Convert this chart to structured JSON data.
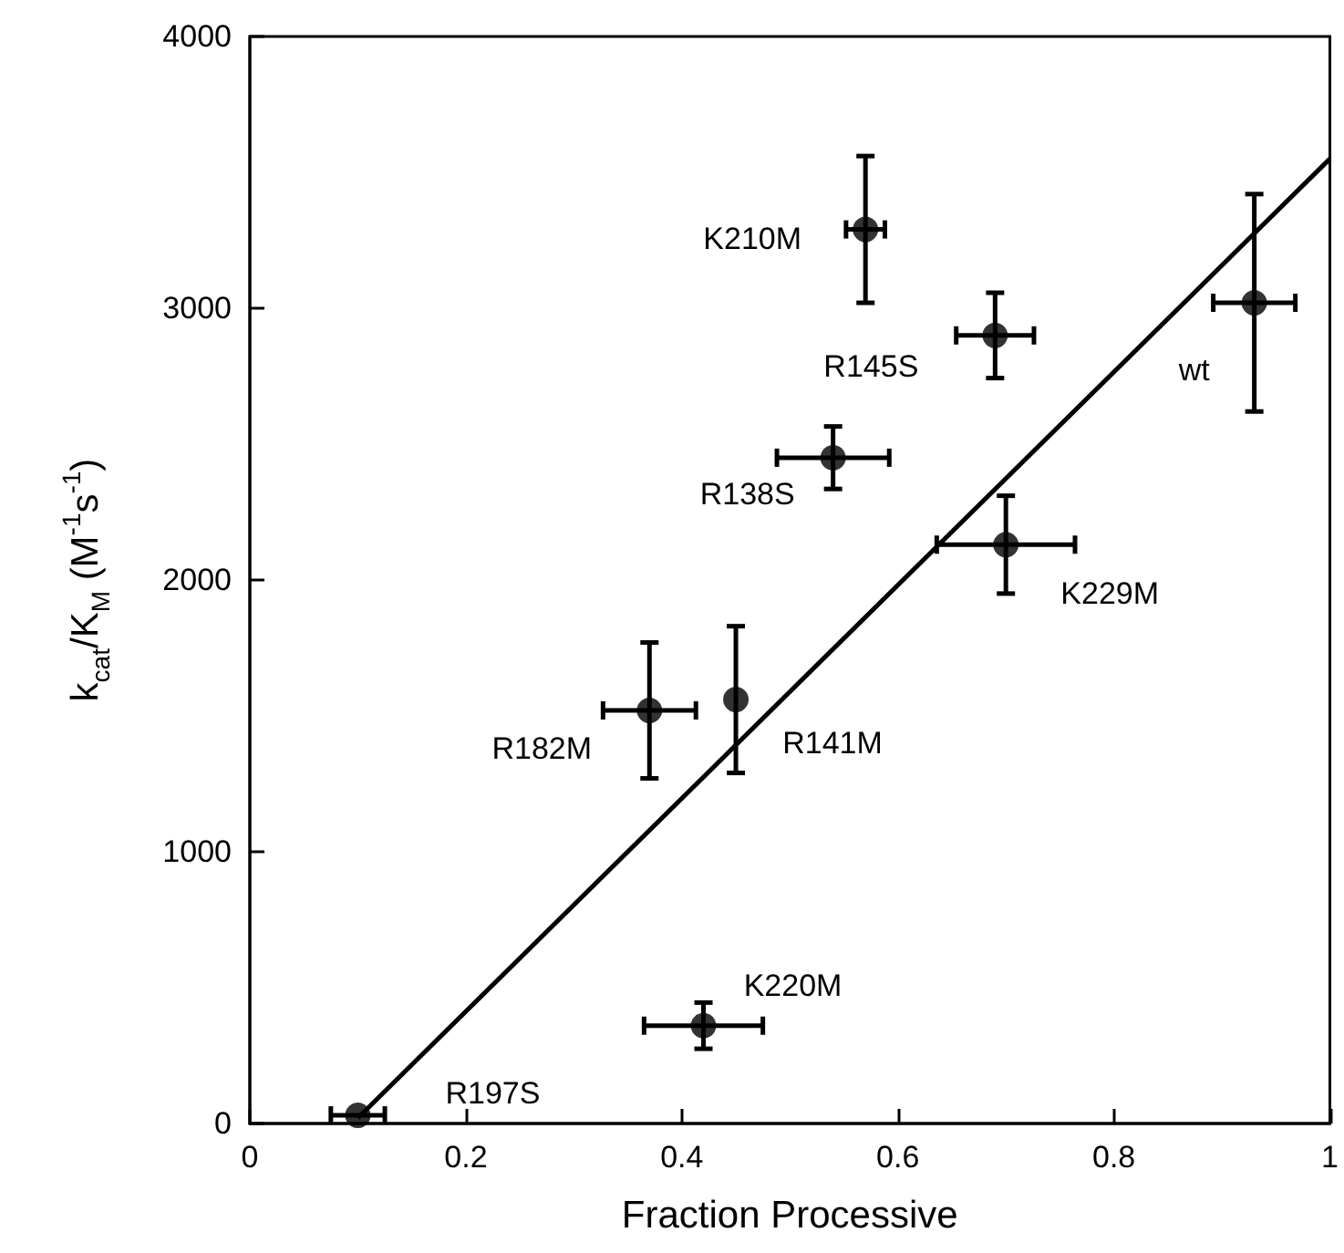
{
  "chart_data": {
    "type": "scatter",
    "xlabel": "Fraction Processive",
    "ylabel": "k$_{cat}$/K$_{M}$ (M$^{-1}$s$^{-1}$)",
    "xlim": [
      0,
      1
    ],
    "xticks": [
      0,
      0.2,
      0.4,
      0.6,
      0.8,
      1
    ],
    "ylim": [
      0,
      4000
    ],
    "yticks": [
      0,
      1000,
      2000,
      3000,
      4000
    ],
    "grid": false,
    "marker": "circle",
    "series": [
      {
        "color": "#000000",
        "x": [
          0.1,
          0.42,
          0.37,
          0.45,
          0.54,
          0.57,
          0.69,
          0.7,
          0.93
        ],
        "values": [
          30,
          360,
          1520,
          1560,
          2450,
          3290,
          2900,
          2130,
          3020
        ],
        "errors": [
          null,
          85,
          250,
          270,
          115,
          270,
          157,
          180,
          400
        ],
        "xerrors": [
          0.025,
          0.055,
          0.043,
          null,
          0.052,
          0.018,
          0.036,
          0.064,
          0.038
        ]
      },
      {
        "type": "line",
        "color": "#000000",
        "line_style": "solid",
        "marker": "none",
        "x": [
          0.1,
          1
        ],
        "values": [
          20,
          3550
        ]
      }
    ],
    "annotations": [
      {
        "text": "R197S",
        "x": 0.1,
        "y": 30
      },
      {
        "text": "K220M",
        "x": 0.42,
        "y": 360
      },
      {
        "text": "R182M",
        "x": 0.37,
        "y": 1520
      },
      {
        "text": "R141M",
        "x": 0.45,
        "y": 1560
      },
      {
        "text": "R138S",
        "x": 0.54,
        "y": 2450
      },
      {
        "text": "K210M",
        "x": 0.57,
        "y": 3290
      },
      {
        "text": "R145S",
        "x": 0.69,
        "y": 2900
      },
      {
        "text": "K229M",
        "x": 0.7,
        "y": 2130
      },
      {
        "text": "wt",
        "x": 0.93,
        "y": 3020
      }
    ]
  }
}
